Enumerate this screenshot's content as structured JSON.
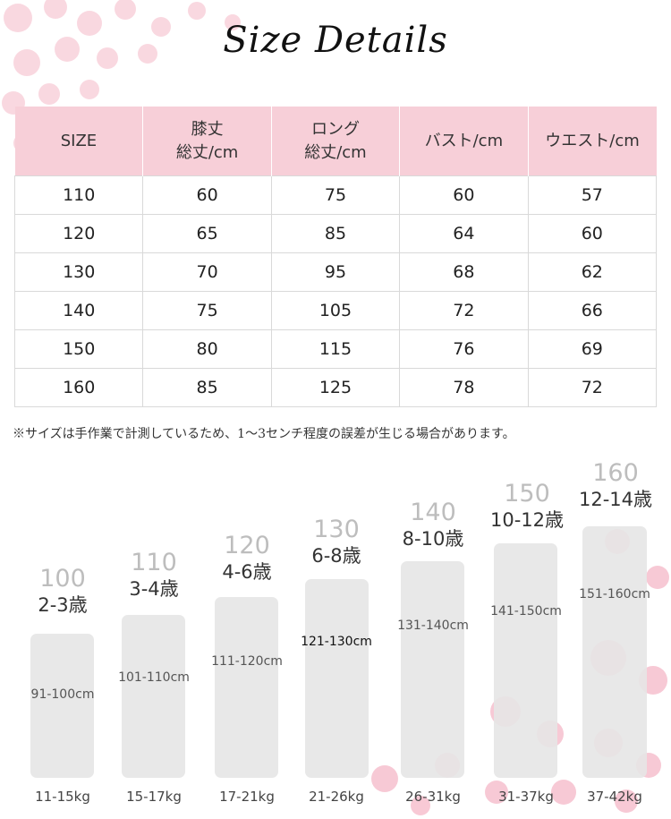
{
  "title": "Size Details",
  "table": {
    "headers": [
      [
        "SIZE"
      ],
      [
        "膝丈",
        "総丈/cm"
      ],
      [
        "ロング",
        "総丈/cm"
      ],
      [
        "バスト/cm"
      ],
      [
        "ウエスト/cm"
      ]
    ],
    "rows": [
      [
        "110",
        "60",
        "75",
        "60",
        "57"
      ],
      [
        "120",
        "65",
        "85",
        "64",
        "60"
      ],
      [
        "130",
        "70",
        "95",
        "68",
        "62"
      ],
      [
        "140",
        "75",
        "105",
        "72",
        "66"
      ],
      [
        "150",
        "80",
        "115",
        "76",
        "69"
      ],
      [
        "160",
        "85",
        "125",
        "78",
        "72"
      ]
    ]
  },
  "note": "※サイズは手作業で計測しているため、1〜3センチ程度の誤差が生じる場合があります。",
  "size_chart": [
    {
      "size": "100",
      "age": "2-3歳",
      "height": "91-100cm",
      "weight": "11-15kg"
    },
    {
      "size": "110",
      "age": "3-4歳",
      "height": "101-110cm",
      "weight": "15-17kg"
    },
    {
      "size": "120",
      "age": "4-6歳",
      "height": "111-120cm",
      "weight": "17-21kg"
    },
    {
      "size": "130",
      "age": "6-8歳",
      "height": "121-130cm",
      "weight": "21-26kg"
    },
    {
      "size": "140",
      "age": "8-10歳",
      "height": "131-140cm",
      "weight": "26-31kg"
    },
    {
      "size": "150",
      "age": "10-12歳",
      "height": "141-150cm",
      "weight": "31-37kg"
    },
    {
      "size": "160",
      "age": "12-14歳",
      "height": "151-160cm",
      "weight": "37-42kg"
    }
  ],
  "colors": {
    "header_bg": "#f7cfd8",
    "petal": "#f6c3cf",
    "bar": "#e6e6e6"
  }
}
